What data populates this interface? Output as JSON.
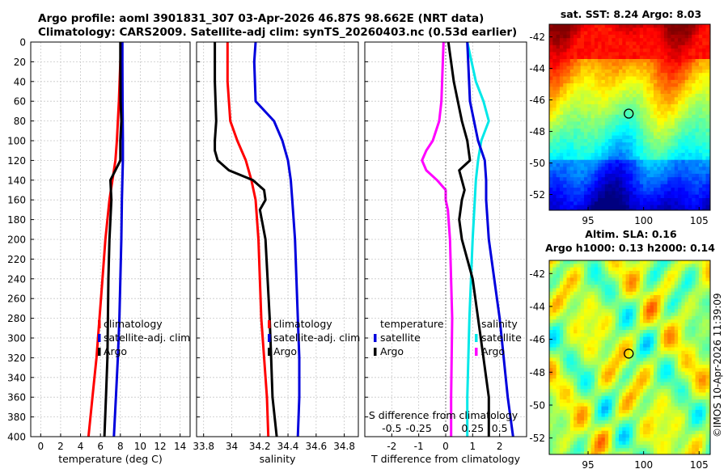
{
  "header": {
    "line1": "Argo profile: aoml 3901831_307 03-Apr-2026 46.87S 98.662E (NRT data)",
    "line2": "Climatology: CARS2009. Satellite-adj clim: synTS_20260403.nc (0.53d earlier)"
  },
  "stamp": "©IMOS 10-Apr-2026 11:39:09",
  "colors": {
    "climatology": "#ff0000",
    "satellite": "#0000dd",
    "argo": "#000000",
    "s_satellite": "#00e8e8",
    "s_argo": "#ff00ff"
  },
  "chart_data": [
    {
      "type": "line",
      "name": "temperature",
      "xlabel": "temperature (deg C)",
      "xlim": [
        -1,
        15
      ],
      "ylim": [
        400,
        0
      ],
      "xticks": [
        "0",
        "2",
        "4",
        "6",
        "8",
        "10",
        "12",
        "14"
      ],
      "legend": [
        "climatology",
        "satellite-adj. clim",
        "Argo"
      ],
      "series": [
        {
          "name": "climatology",
          "depth": [
            0,
            20,
            60,
            100,
            120,
            140,
            160,
            200,
            240,
            280,
            320,
            360,
            400
          ],
          "values": [
            8.1,
            8.0,
            7.85,
            7.65,
            7.5,
            7.2,
            6.9,
            6.5,
            6.2,
            5.9,
            5.6,
            5.2,
            4.8
          ]
        },
        {
          "name": "satellite-adj. clim",
          "depth": [
            0,
            20,
            60,
            100,
            120,
            140,
            160,
            200,
            240,
            280,
            320,
            360,
            400
          ],
          "values": [
            8.2,
            8.2,
            8.22,
            8.25,
            8.25,
            8.2,
            8.15,
            8.1,
            8.0,
            7.9,
            7.75,
            7.55,
            7.35
          ]
        },
        {
          "name": "Argo",
          "depth": [
            0,
            20,
            60,
            80,
            100,
            120,
            130,
            140,
            160,
            200,
            240,
            280,
            320,
            360,
            400
          ],
          "values": [
            8.0,
            8.0,
            8.02,
            8.1,
            8.0,
            8.0,
            7.5,
            7.0,
            7.1,
            6.9,
            6.8,
            6.75,
            6.7,
            6.55,
            6.4
          ]
        }
      ]
    },
    {
      "type": "line",
      "name": "salinity",
      "xlabel": "salinity",
      "xlim": [
        33.75,
        34.9
      ],
      "ylim": [
        400,
        0
      ],
      "xticks": [
        "33.8",
        "34",
        "34.2",
        "34.4",
        "34.6",
        "34.8"
      ],
      "legend": [
        "climatology",
        "satellite-adj. clim",
        "Argo"
      ],
      "series": [
        {
          "name": "climatology",
          "depth": [
            0,
            40,
            80,
            100,
            120,
            140,
            160,
            200,
            280,
            320,
            360,
            400
          ],
          "values": [
            33.97,
            33.97,
            33.99,
            34.04,
            34.1,
            34.14,
            34.17,
            34.19,
            34.21,
            34.23,
            34.25,
            34.26
          ]
        },
        {
          "name": "satellite-adj. clim",
          "depth": [
            0,
            20,
            60,
            80,
            100,
            120,
            140,
            160,
            200,
            280,
            320,
            360,
            400
          ],
          "values": [
            34.17,
            34.16,
            34.17,
            34.3,
            34.36,
            34.4,
            34.42,
            34.43,
            34.45,
            34.47,
            34.48,
            34.48,
            34.47
          ]
        },
        {
          "name": "Argo",
          "depth": [
            0,
            40,
            80,
            100,
            110,
            120,
            130,
            140,
            150,
            160,
            170,
            200,
            280,
            320,
            360,
            400
          ],
          "values": [
            33.88,
            33.88,
            33.89,
            33.88,
            33.88,
            33.9,
            33.98,
            34.15,
            34.23,
            34.24,
            34.2,
            34.24,
            34.27,
            34.28,
            34.29,
            34.32
          ]
        }
      ]
    },
    {
      "type": "line",
      "name": "differences",
      "xlabel": "T difference from climatology",
      "xlim": [
        -3,
        3
      ],
      "ylim": [
        400,
        0
      ],
      "xticks": [
        "-2",
        "-1",
        "0",
        "1",
        "2"
      ],
      "top_label": "S difference from climatology",
      "top_ticks": [
        "-0.5",
        "-0.25",
        "0",
        "0.25",
        "0.5"
      ],
      "legend_left": [
        "temperature",
        "satellite",
        "Argo"
      ],
      "legend_right": [
        "salinity",
        "satellite",
        "Argo"
      ],
      "series": [
        {
          "name": "T satellite",
          "depth": [
            0,
            60,
            100,
            120,
            140,
            160,
            200,
            280,
            360,
            400
          ],
          "values": [
            0.8,
            0.9,
            1.2,
            1.45,
            1.5,
            1.5,
            1.6,
            2.0,
            2.3,
            2.5
          ]
        },
        {
          "name": "T Argo",
          "depth": [
            0,
            40,
            80,
            100,
            120,
            130,
            140,
            150,
            160,
            180,
            200,
            240,
            280,
            320,
            360,
            400
          ],
          "values": [
            0.1,
            0.3,
            0.6,
            0.8,
            0.9,
            0.5,
            0.6,
            0.7,
            0.6,
            0.5,
            0.6,
            1.0,
            1.2,
            1.4,
            1.6,
            1.6
          ]
        },
        {
          "name": "S satellite",
          "depth": [
            0,
            40,
            60,
            80,
            100,
            120,
            140,
            160,
            200,
            280,
            360,
            400
          ],
          "values": [
            0.2,
            0.28,
            0.35,
            0.4,
            0.33,
            0.3,
            0.28,
            0.27,
            0.25,
            0.22,
            0.2,
            0.2
          ]
        },
        {
          "name": "S Argo",
          "depth": [
            0,
            60,
            80,
            100,
            110,
            120,
            130,
            140,
            150,
            160,
            170,
            200,
            280,
            360,
            400
          ],
          "values": [
            -0.02,
            -0.04,
            -0.06,
            -0.12,
            -0.18,
            -0.22,
            -0.18,
            -0.08,
            0,
            0,
            0.02,
            0.04,
            0.06,
            0.05,
            0.05
          ]
        }
      ]
    },
    {
      "type": "heatmap",
      "name": "sst-map",
      "title": "sat. SST: 8.24 Argo: 8.03",
      "xticks": [
        "95",
        "100",
        "105"
      ],
      "yticks": [
        "-42",
        "-44",
        "-46",
        "-48",
        "-50",
        "-52"
      ],
      "xlim": [
        91.5,
        106
      ],
      "ylim": [
        -53,
        -41.2
      ],
      "marker": {
        "lon": 98.66,
        "lat": -46.87
      }
    },
    {
      "type": "heatmap",
      "name": "sla-map",
      "title_line1": "Altim. SLA: 0.16",
      "title_line2": "Argo h1000: 0.13 h2000: 0.14",
      "xticks": [
        "95",
        "100",
        "105"
      ],
      "yticks": [
        "-42",
        "-44",
        "-46",
        "-48",
        "-50",
        "-52"
      ],
      "xlim": [
        91.5,
        106
      ],
      "ylim": [
        -53,
        -41.2
      ],
      "marker": {
        "lon": 98.66,
        "lat": -46.87
      }
    }
  ]
}
